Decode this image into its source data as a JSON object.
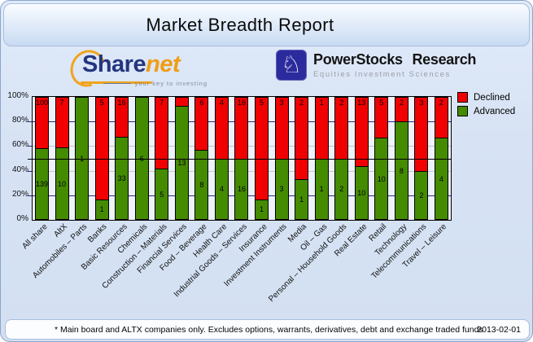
{
  "title": "Market Breadth Report",
  "logos": {
    "sharenet": {
      "text_primary": "Share",
      "text_secondary": "net",
      "tagline": "your key to investing"
    },
    "powerstocks": {
      "name": "PowerStocks Research",
      "tagline": "Equities Investment Sciences",
      "knight_glyph": "♘"
    }
  },
  "chart_data": {
    "type": "bar",
    "stacking": "percent",
    "title": "Market Breadth Report",
    "xlabel": "",
    "ylabel": "",
    "ylim": [
      0,
      100
    ],
    "y_ticks": [
      "100%",
      "80%",
      "60%",
      "40%",
      "20%",
      "0%"
    ],
    "grid": {
      "navy_lines_pct": [
        20,
        80
      ],
      "gray_lines_pct": [
        40,
        60
      ],
      "black_line_pct": 50
    },
    "legend_position": "top-right",
    "legend": [
      {
        "label": "Declined",
        "color": "#f00000"
      },
      {
        "label": "Advanced",
        "color": "#458b00"
      }
    ],
    "categories": [
      "All share",
      "AltX",
      "Automobiles – Parts",
      "Banks",
      "Basic Resources",
      "Chemicals",
      "Construction – Materials",
      "Financial Services",
      "Food – Beverage",
      "Health Care",
      "Industrial Goods – Services",
      "Insurance",
      "Investment Instruments",
      "Media",
      "Oil – Gas",
      "Personal – Household Goods",
      "Real Estate",
      "Retail",
      "Technology",
      "Telecommunications",
      "Travel – Leisure"
    ],
    "series": [
      {
        "name": "Declined",
        "color": "#f00000",
        "values": [
          100,
          7,
          0,
          5,
          16,
          0,
          7,
          1,
          6,
          4,
          16,
          5,
          3,
          2,
          1,
          2,
          13,
          5,
          2,
          3,
          2
        ]
      },
      {
        "name": "Advanced",
        "color": "#458b00",
        "values": [
          139,
          10,
          1,
          1,
          33,
          6,
          5,
          13,
          8,
          4,
          16,
          1,
          3,
          1,
          1,
          2,
          10,
          10,
          8,
          2,
          4
        ]
      }
    ]
  },
  "footer": {
    "note": "* Main board and ALTX companies only. Excludes options, warrants, derivatives, debt and exchange traded funds",
    "date": "2013-02-01"
  }
}
